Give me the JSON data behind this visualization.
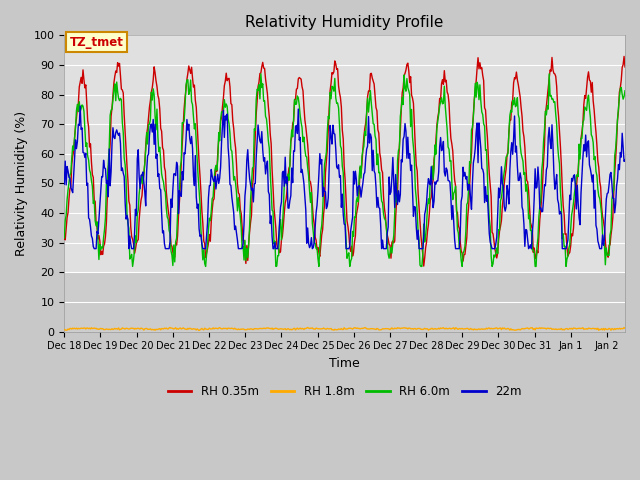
{
  "title": "Relativity Humidity Profile",
  "xlabel": "Time",
  "ylabel": "Relativity Humidity (%)",
  "annotation": "TZ_tmet",
  "ylim": [
    0,
    100
  ],
  "legend": [
    "RH 0.35m",
    "RH 1.8m",
    "RH 6.0m",
    "22m"
  ],
  "colors": [
    "#cc0000",
    "#ffaa00",
    "#00bb00",
    "#0000cc"
  ],
  "fig_bg_color": "#c8c8c8",
  "plot_bg_upper_color": "#e0e0e0",
  "plot_bg_lower_color": "#cccccc",
  "grid_color": "#ffffff",
  "tick_labels": [
    "Dec 18",
    "Dec 19",
    "Dec 20",
    "Dec 21",
    "Dec 22",
    "Dec 23",
    "Dec 24",
    "Dec 25",
    "Dec 26",
    "Dec 27",
    "Dec 28",
    "Dec 29",
    "Dec 30",
    "Dec 31",
    "Jan 1",
    "Jan 2"
  ],
  "tick_positions": [
    0,
    1,
    2,
    3,
    4,
    5,
    6,
    7,
    8,
    9,
    10,
    11,
    12,
    13,
    14,
    15
  ],
  "yticks": [
    0,
    10,
    20,
    30,
    40,
    50,
    60,
    70,
    80,
    90,
    100
  ]
}
